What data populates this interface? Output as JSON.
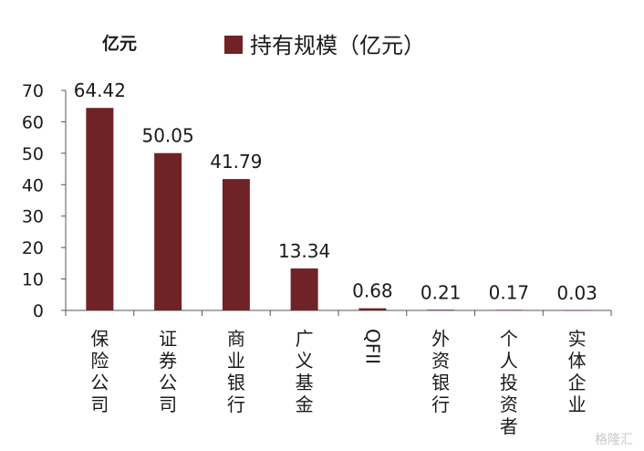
{
  "chart_data": {
    "type": "bar",
    "ylabel": "亿元",
    "ylim": [
      0,
      70
    ],
    "yticks": [
      0,
      10,
      20,
      30,
      40,
      50,
      60,
      70
    ],
    "categories": [
      "保险公司",
      "证券公司",
      "商业银行",
      "广义基金",
      "QFII",
      "外资银行",
      "个人投资者",
      "实体企业"
    ],
    "series": [
      {
        "name": "持有规模（亿元）",
        "values": [
          64.42,
          50.05,
          41.79,
          13.34,
          0.68,
          0.21,
          0.17,
          0.03
        ],
        "labels": [
          "64.42",
          "50.05",
          "41.79",
          "13.34",
          "0.68",
          "0.21",
          "0.17",
          "0.03"
        ]
      }
    ],
    "legend_position": "top",
    "grid": false
  },
  "colors": {
    "bar": "#6f2326",
    "axis": "#555555"
  },
  "watermark": "格隆汇"
}
